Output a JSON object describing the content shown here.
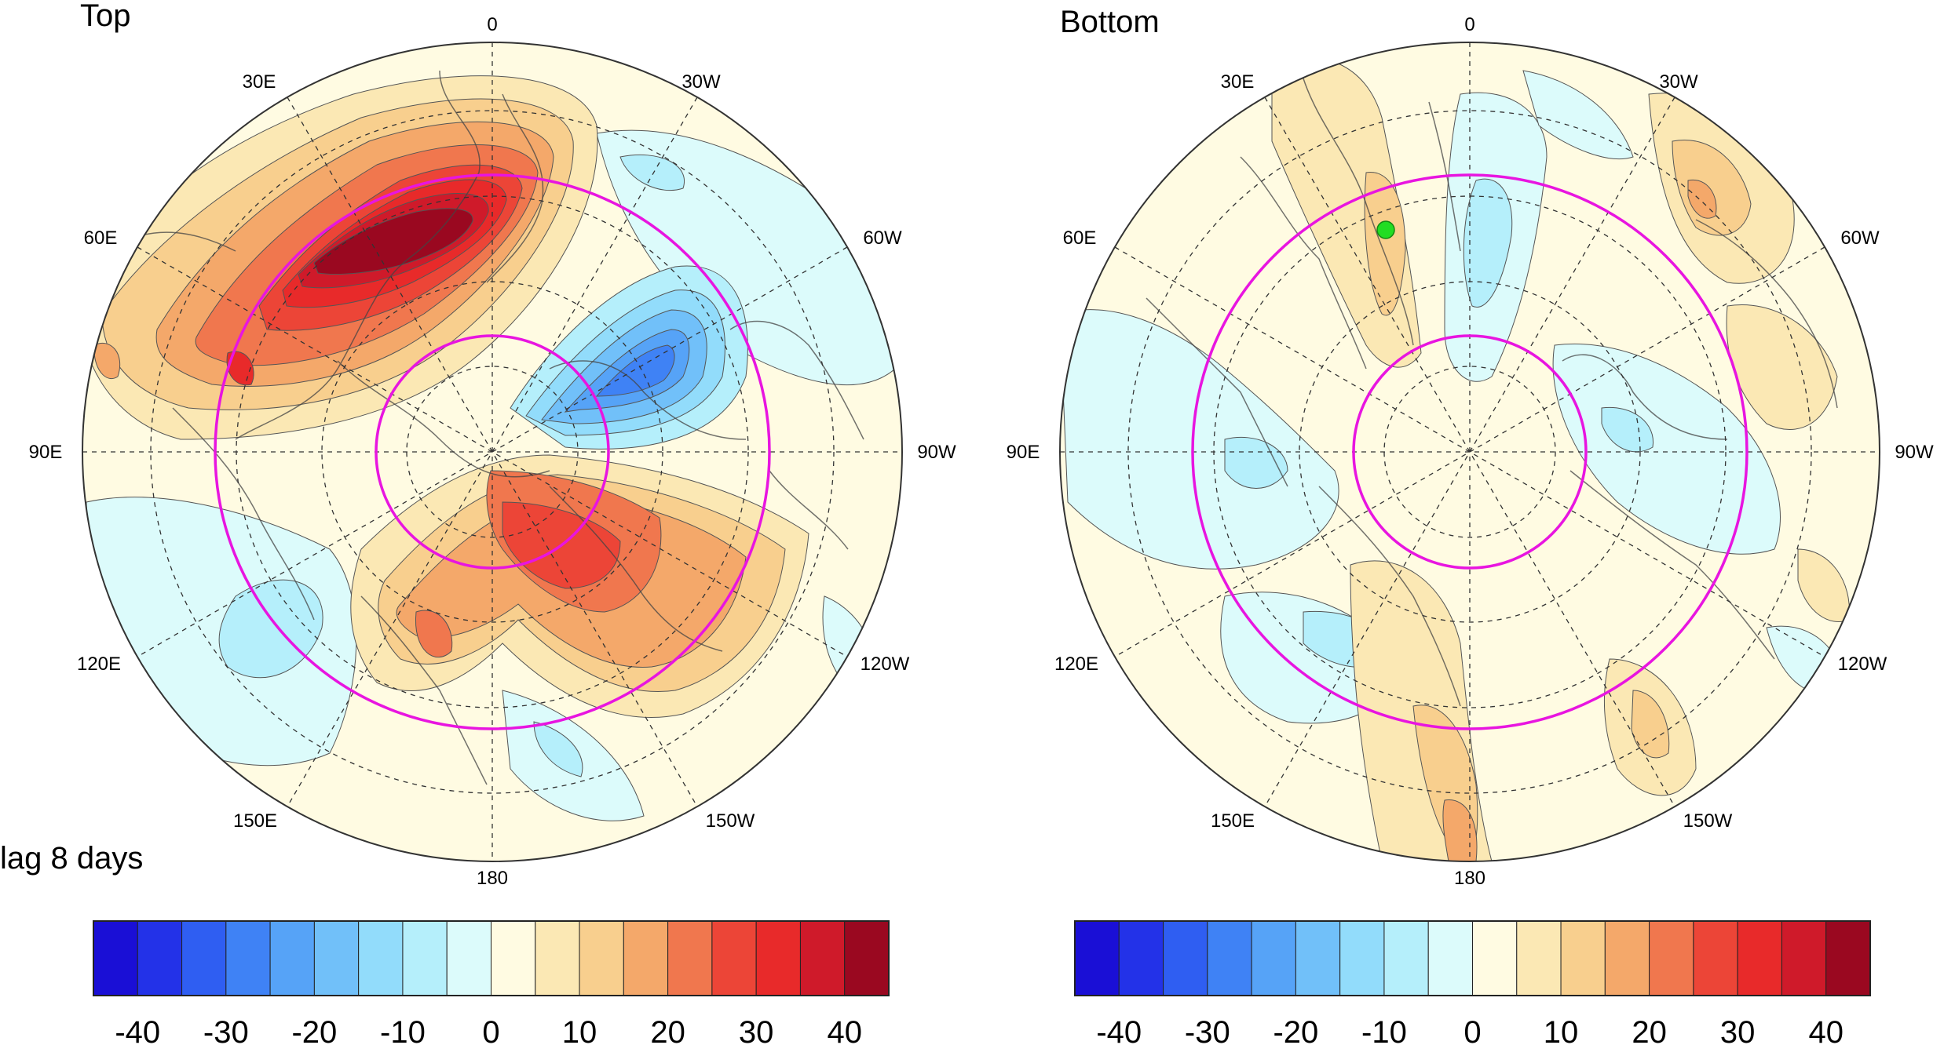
{
  "panels": [
    {
      "title": "Top",
      "lon_labels": [
        "0",
        "30W",
        "60W",
        "90W",
        "120W",
        "150W",
        "180",
        "150E",
        "120E",
        "90E",
        "60E",
        "30E"
      ]
    },
    {
      "title": "Bottom",
      "lon_labels": [
        "0",
        "30W",
        "60W",
        "90W",
        "120W",
        "150W",
        "180",
        "150E",
        "120E",
        "90E",
        "60E",
        "30E"
      ]
    }
  ],
  "caption": "lag 8 days",
  "colorbar": {
    "tick_labels": [
      "-40",
      "-30",
      "-20",
      "-10",
      "0",
      "10",
      "20",
      "30",
      "40"
    ],
    "colors": [
      "#1a0fd6",
      "#2332e8",
      "#2f5ef2",
      "#3f82f5",
      "#56a3f7",
      "#71c0f9",
      "#92dcfb",
      "#b5effb",
      "#dcfbfb",
      "#fffbe2",
      "#fbe8b4",
      "#f8cf8e",
      "#f4a86a",
      "#f0774e",
      "#ec4537",
      "#e82a2a",
      "#cf1a2a",
      "#9a0820"
    ]
  },
  "ring_color": "#e815e0",
  "marker_color": "#22dd22"
}
